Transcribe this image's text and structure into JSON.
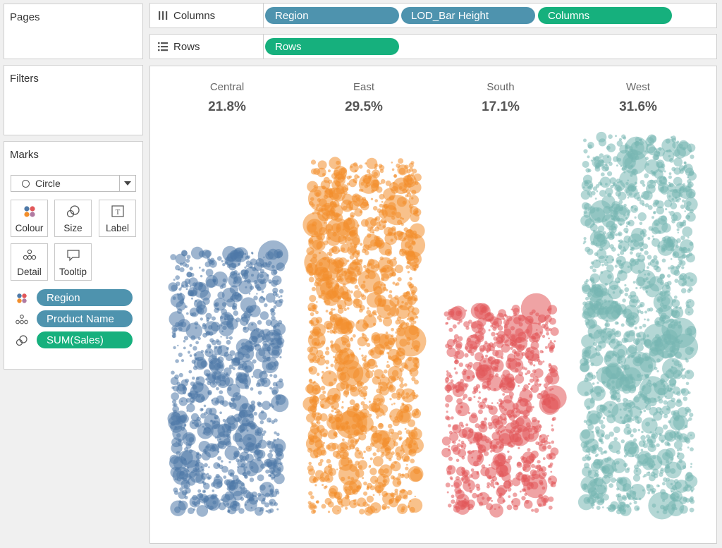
{
  "pages": {
    "title": "Pages"
  },
  "filters": {
    "title": "Filters"
  },
  "marks": {
    "title": "Marks",
    "mark_type": "Circle",
    "buttons": [
      "Colour",
      "Size",
      "Label",
      "Detail",
      "Tooltip"
    ],
    "fields": [
      {
        "icon": "colour-icon",
        "label": "Region",
        "color": "blue"
      },
      {
        "icon": "detail-icon",
        "label": "Product Name",
        "color": "blue"
      },
      {
        "icon": "size-icon",
        "label": "SUM(Sales)",
        "color": "green"
      }
    ]
  },
  "shelves": {
    "columns": {
      "label": "Columns",
      "pills": [
        "Region",
        "LOD_Bar Height",
        "Columns"
      ]
    },
    "rows": {
      "label": "Rows",
      "pills": [
        "Rows"
      ]
    }
  },
  "colors": {
    "Central": "#4e79a7",
    "East": "#f28e2b",
    "South": "#e15759",
    "West": "#76b7b2",
    "pill_blue": "#4e93ae",
    "pill_green": "#16b07d"
  },
  "chart_data": {
    "type": "scatter",
    "title": "",
    "categories": [
      "Central",
      "East",
      "South",
      "West"
    ],
    "values": [
      21.8,
      29.5,
      17.1,
      31.6
    ],
    "labels": [
      "21.8%",
      "29.5%",
      "17.1%",
      "31.6%"
    ],
    "grid": false
  }
}
